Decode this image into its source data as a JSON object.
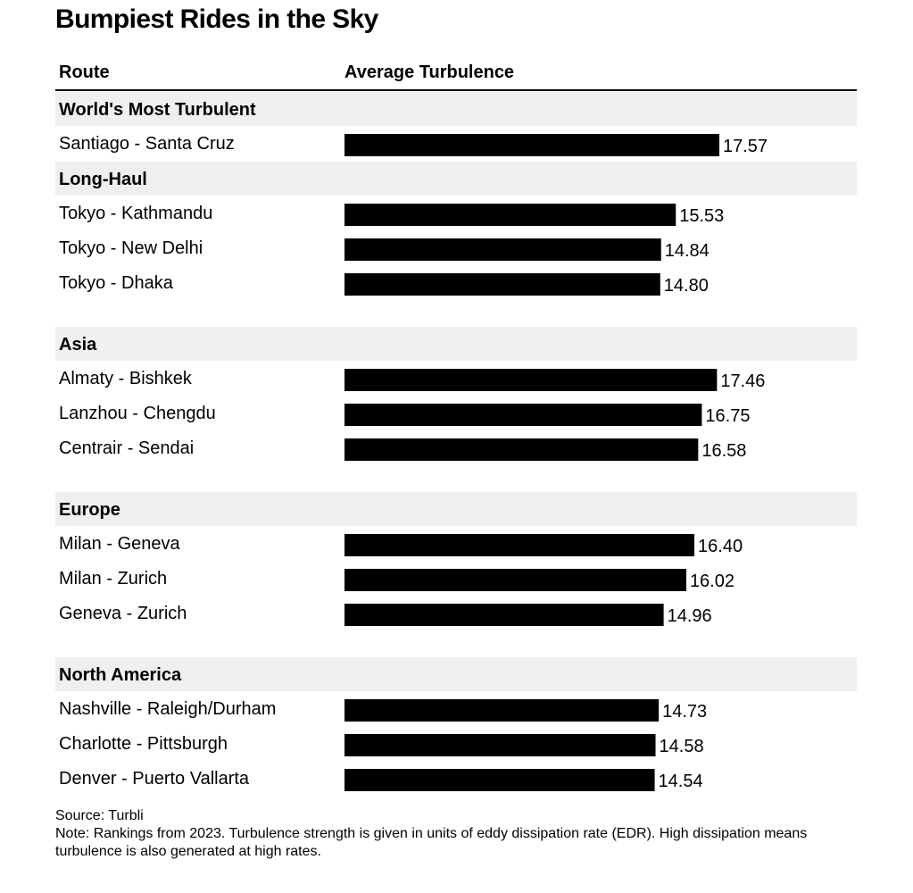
{
  "title": "Bumpiest Rides in the Sky",
  "headers": {
    "route": "Route",
    "value": "Average Turbulence"
  },
  "colors": {
    "bar": "#000000",
    "group_band": "#efefef",
    "text": "#000000"
  },
  "chart_data": {
    "type": "bar",
    "orientation": "horizontal",
    "title": "Bumpiest Rides in the Sky",
    "xlabel": "Average Turbulence",
    "ylabel": "Route",
    "xlim": [
      0,
      17.57
    ],
    "grid": false,
    "groups": [
      {
        "name": "World's Most Turbulent",
        "routes": [
          {
            "label": "Santiago - Santa Cruz",
            "value": 17.57,
            "value_label": "17.57"
          }
        ]
      },
      {
        "name": "Long-Haul",
        "routes": [
          {
            "label": "Tokyo - Kathmandu",
            "value": 15.53,
            "value_label": "15.53"
          },
          {
            "label": "Tokyo - New Delhi",
            "value": 14.84,
            "value_label": "14.84"
          },
          {
            "label": "Tokyo - Dhaka",
            "value": 14.8,
            "value_label": "14.80"
          }
        ]
      },
      {
        "name": "Asia",
        "routes": [
          {
            "label": "Almaty - Bishkek",
            "value": 17.46,
            "value_label": "17.46"
          },
          {
            "label": "Lanzhou - Chengdu",
            "value": 16.75,
            "value_label": "16.75"
          },
          {
            "label": "Centrair - Sendai",
            "value": 16.58,
            "value_label": "16.58"
          }
        ]
      },
      {
        "name": "Europe",
        "routes": [
          {
            "label": "Milan - Geneva",
            "value": 16.4,
            "value_label": "16.40"
          },
          {
            "label": "Milan - Zurich",
            "value": 16.02,
            "value_label": "16.02"
          },
          {
            "label": "Geneva - Zurich",
            "value": 14.96,
            "value_label": "14.96"
          }
        ]
      },
      {
        "name": "North America",
        "routes": [
          {
            "label": "Nashville - Raleigh/Durham",
            "value": 14.73,
            "value_label": "14.73"
          },
          {
            "label": "Charlotte - Pittsburgh",
            "value": 14.58,
            "value_label": "14.58"
          },
          {
            "label": "Denver - Puerto Vallarta",
            "value": 14.54,
            "value_label": "14.54"
          }
        ]
      }
    ]
  },
  "footer": {
    "source": "Source: Turbli",
    "note": "Note: Rankings from 2023. Turbulence strength is given in units of eddy dissipation rate (EDR). High dissipation means turbulence is also generated at high rates."
  }
}
